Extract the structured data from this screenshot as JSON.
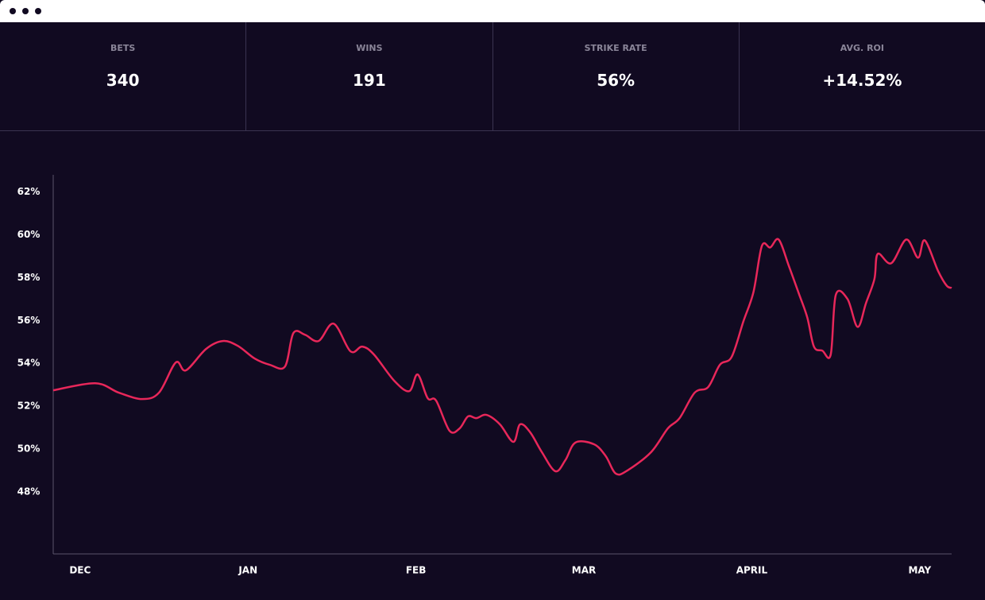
{
  "stats": [
    {
      "label": "BETS",
      "value": "340"
    },
    {
      "label": "WINS",
      "value": "191"
    },
    {
      "label": "STRIKE RATE",
      "value": "56%"
    },
    {
      "label": "AVG. ROI",
      "value": "+14.52%"
    }
  ],
  "chart_data": {
    "type": "line",
    "color": "#e8275a",
    "x": [
      -0.16,
      0.09,
      0.23,
      0.37,
      0.47,
      0.57,
      0.63,
      0.75,
      0.85,
      0.94,
      1.04,
      1.13,
      1.22,
      1.27,
      1.34,
      1.42,
      1.51,
      1.61,
      1.68,
      1.75,
      1.87,
      1.96,
      2.01,
      2.07,
      2.12,
      2.2,
      2.26,
      2.31,
      2.36,
      2.42,
      2.5,
      2.58,
      2.62,
      2.68,
      2.75,
      2.83,
      2.89,
      2.95,
      3.06,
      3.13,
      3.19,
      3.26,
      3.4,
      3.5,
      3.57,
      3.66,
      3.74,
      3.81,
      3.88,
      3.95,
      4.01,
      4.06,
      4.11,
      4.16,
      4.22,
      4.28,
      4.33,
      4.37,
      4.42,
      4.47,
      4.5,
      4.57,
      4.63,
      4.68,
      4.73,
      4.75,
      4.83,
      4.92,
      4.99,
      5.03,
      5.11,
      5.16,
      5.19
    ],
    "values": [
      52.74,
      53.07,
      52.63,
      52.33,
      52.63,
      54.04,
      53.67,
      54.67,
      55.04,
      54.81,
      54.22,
      53.93,
      53.85,
      55.41,
      55.33,
      55.04,
      55.85,
      54.56,
      54.78,
      54.41,
      53.19,
      52.7,
      53.48,
      52.37,
      52.26,
      50.85,
      50.96,
      51.52,
      51.44,
      51.59,
      51.15,
      50.33,
      51.15,
      50.78,
      49.85,
      48.96,
      49.48,
      50.3,
      50.22,
      49.67,
      48.85,
      49.0,
      49.85,
      50.96,
      51.44,
      52.63,
      52.89,
      53.93,
      54.3,
      55.96,
      57.33,
      59.48,
      59.41,
      59.78,
      58.56,
      57.26,
      56.15,
      54.78,
      54.59,
      54.41,
      57.19,
      57.0,
      55.7,
      56.81,
      57.93,
      59.11,
      58.67,
      59.78,
      58.93,
      59.74,
      58.3,
      57.63,
      57.52
    ],
    "xlim": [
      -0.16,
      5.19
    ],
    "xticks": [
      {
        "value": 0,
        "label": "DEC"
      },
      {
        "value": 1,
        "label": "JAN"
      },
      {
        "value": 2,
        "label": "FEB"
      },
      {
        "value": 3,
        "label": "MAR"
      },
      {
        "value": 4,
        "label": "APRIL"
      },
      {
        "value": 5,
        "label": "MAY"
      }
    ],
    "ylim": [
      45.1,
      62.8
    ],
    "yticks": [
      {
        "value": 48,
        "label": "48%"
      },
      {
        "value": 50,
        "label": "50%"
      },
      {
        "value": 52,
        "label": "52%"
      },
      {
        "value": 54,
        "label": "54%"
      },
      {
        "value": 56,
        "label": "56%"
      },
      {
        "value": 58,
        "label": "58%"
      },
      {
        "value": 60,
        "label": "60%"
      },
      {
        "value": 62,
        "label": "62%"
      }
    ]
  }
}
